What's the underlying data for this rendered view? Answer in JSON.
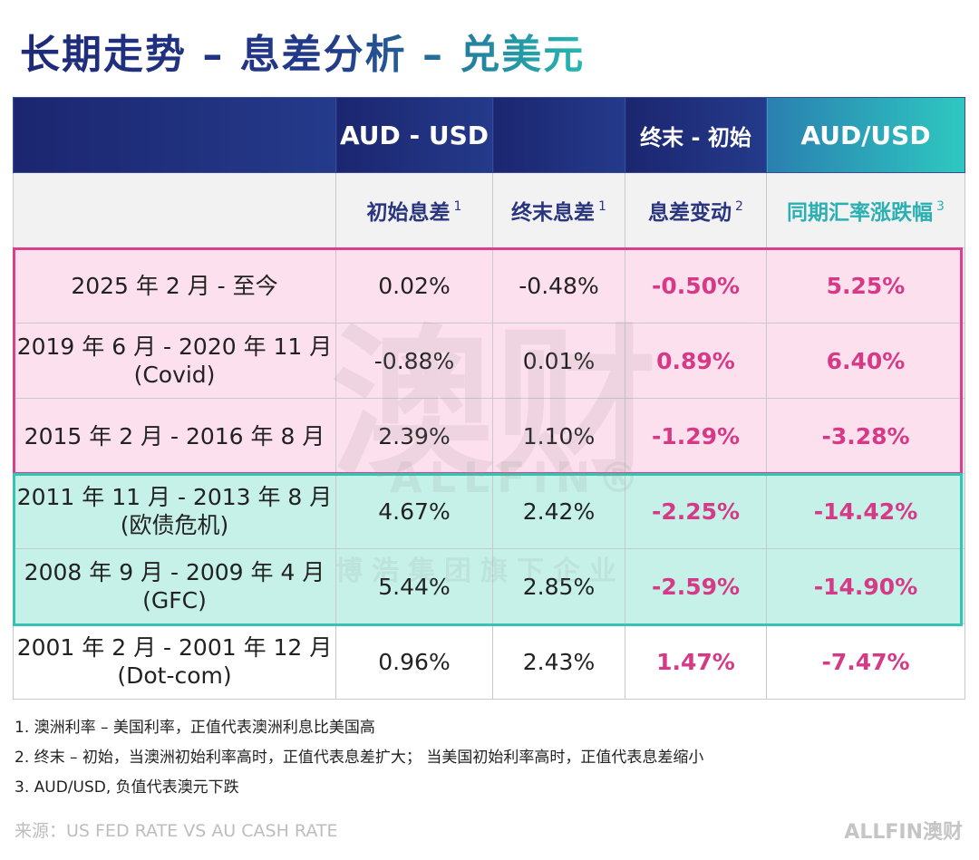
{
  "header": {
    "title": "长期走势 – 息差分析 – 兑美元"
  },
  "table": {
    "group_header": [
      "AUD - USD",
      "终末 - 初始",
      "AUD/USD"
    ],
    "columns": [
      {
        "label": "初始息差",
        "sup": "1"
      },
      {
        "label": "终末息差",
        "sup": "1"
      },
      {
        "label": "息差变动",
        "sup": "2"
      },
      {
        "label": "同期汇率涨跌幅",
        "sup": "3"
      }
    ],
    "rows": [
      {
        "period": [
          "2025 年 2 月 - 至今"
        ],
        "cells": [
          "0.02%",
          "-0.48%",
          "-0.50%",
          "5.25%"
        ]
      },
      {
        "period": [
          "2019 年 6 月 - 2020 年 11 月",
          "(Covid)"
        ],
        "cells": [
          "-0.88%",
          "0.01%",
          "0.89%",
          "6.40%"
        ]
      },
      {
        "period": [
          "2015 年 2 月 - 2016 年 8 月"
        ],
        "cells": [
          "2.39%",
          "1.10%",
          "-1.29%",
          "-3.28%"
        ]
      },
      {
        "period": [
          "2011 年 11 月 - 2013 年 8 月",
          "(欧债危机)"
        ],
        "cells": [
          "4.67%",
          "2.42%",
          "-2.25%",
          "-14.42%"
        ]
      },
      {
        "period": [
          "2008 年 9 月 - 2009 年 4 月",
          "(GFC)"
        ],
        "cells": [
          "5.44%",
          "2.85%",
          "-2.59%",
          "-14.90%"
        ]
      },
      {
        "period": [
          "2001 年 2 月 - 2001 年 12 月",
          "(Dot-com)"
        ],
        "cells": [
          "0.96%",
          "2.43%",
          "1.47%",
          "-7.47%"
        ]
      }
    ]
  },
  "watermark": {
    "main": "澳财",
    "brand": "ALLFIN®",
    "sub": "博浩集团旗下企业"
  },
  "notes": [
    "1. 澳洲利率 – 美国利率，正值代表澳洲利息比美国高",
    "2. 终末 – 初始，当澳洲初始利率高时，正值代表息差扩大； 当美国初始利率高时，正值代表息差缩小",
    "3. AUD/USD, 负值代表澳元下跌"
  ],
  "footer": {
    "source": "来源：US FED RATE VS AU CASH RATE",
    "logo": "ALLFIN澳财"
  }
}
